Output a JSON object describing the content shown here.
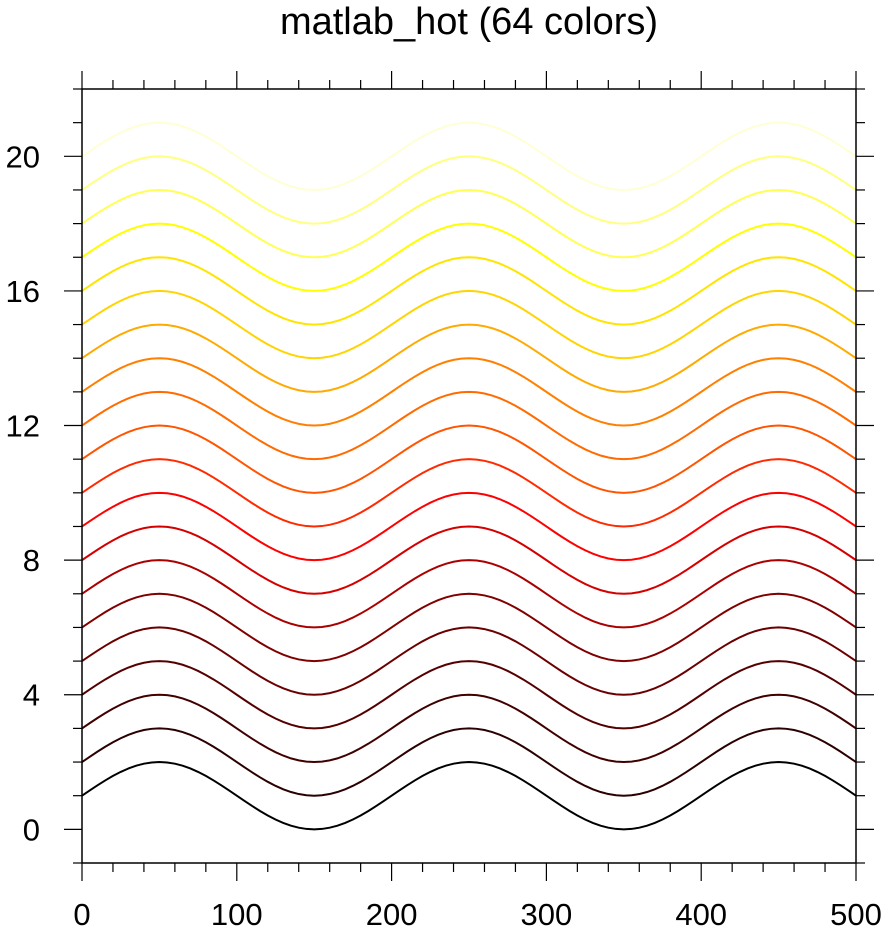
{
  "chart_data": {
    "type": "line",
    "title": "matlab_hot (64 colors)",
    "xlabel": "",
    "ylabel": "",
    "xlim": [
      0,
      500
    ],
    "ylim": [
      -1,
      22
    ],
    "x_ticks": [
      0,
      100,
      200,
      300,
      400,
      500
    ],
    "y_ticks": [
      0,
      4,
      8,
      12,
      16,
      20
    ],
    "grid": false,
    "legend": "none",
    "curve": {
      "form": "offset + 1 + sin(2*pi*(x - 0)/200)",
      "period": 200,
      "amplitude": 1,
      "x_step": 5
    },
    "series": [
      {
        "offset": 0,
        "color": "#000000"
      },
      {
        "offset": 1,
        "color": "#2a0000"
      },
      {
        "offset": 2,
        "color": "#400000"
      },
      {
        "offset": 3,
        "color": "#550000"
      },
      {
        "offset": 4,
        "color": "#6b0000"
      },
      {
        "offset": 5,
        "color": "#800000"
      },
      {
        "offset": 6,
        "color": "#aa0000"
      },
      {
        "offset": 7,
        "color": "#d40000"
      },
      {
        "offset": 8,
        "color": "#ff0000"
      },
      {
        "offset": 9,
        "color": "#ff2a00"
      },
      {
        "offset": 10,
        "color": "#ff5500"
      },
      {
        "offset": 11,
        "color": "#ff6b00"
      },
      {
        "offset": 12,
        "color": "#ff8000"
      },
      {
        "offset": 13,
        "color": "#ffaa00"
      },
      {
        "offset": 14,
        "color": "#ffd400"
      },
      {
        "offset": 15,
        "color": "#ffe400"
      },
      {
        "offset": 16,
        "color": "#ffff00"
      },
      {
        "offset": 17,
        "color": "#ffff55"
      },
      {
        "offset": 18,
        "color": "#ffff80"
      },
      {
        "offset": 19,
        "color": "#ffffd4"
      }
    ]
  }
}
